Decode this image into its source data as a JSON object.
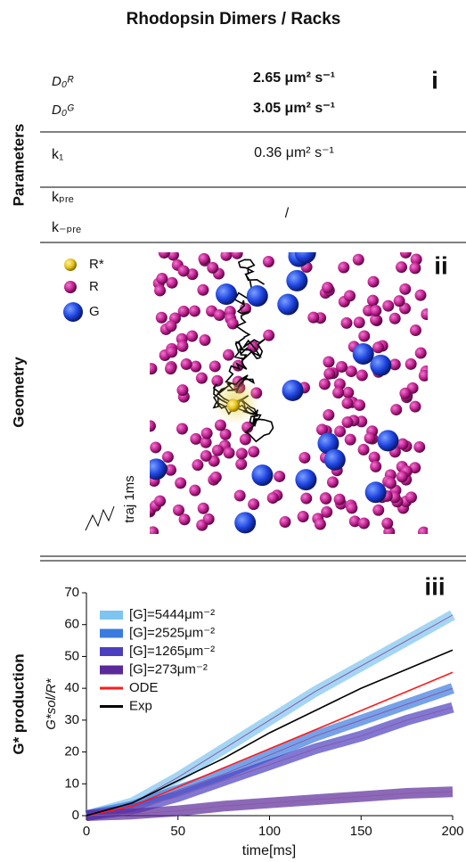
{
  "title": "Rhodopsin Dimers / Racks",
  "parameters": {
    "label": "Parameters",
    "panel": "i",
    "rows": [
      {
        "name": "D₀ᴿ",
        "value": "2.65 μm² s⁻¹"
      },
      {
        "name": "D₀ᴳ",
        "value": "3.05 μm² s⁻¹"
      },
      {
        "name": "k₁",
        "value": "0.36 μm² s⁻¹"
      },
      {
        "name": "kₚᵣₑ"
      },
      {
        "name": "k₋ₚᵣₑ",
        "value": "/"
      }
    ]
  },
  "geometry": {
    "label": "Geometry",
    "panel": "ii",
    "legend": [
      "R*",
      "R",
      "G"
    ],
    "trajectory": "traj 1ms"
  },
  "chart_data": {
    "type": "line",
    "section_label": "G* production",
    "panel": "iii",
    "x_label": "time[ms]",
    "y_label": "G*sol/R*",
    "x": [
      0,
      25,
      50,
      75,
      100,
      125,
      150,
      175,
      200
    ],
    "xlim": [
      0,
      200
    ],
    "xticks": [
      0,
      50,
      100,
      150,
      200
    ],
    "ylim": [
      0,
      70
    ],
    "yticks": [
      0,
      10,
      20,
      30,
      40,
      50,
      60,
      70
    ],
    "series": [
      {
        "name": "[G]=5444μm⁻²",
        "color": "#7ec4f0",
        "band": true,
        "values": [
          0,
          4,
          12,
          21,
          30,
          39,
          47,
          55,
          63
        ]
      },
      {
        "name": "[G]=2525μm⁻²",
        "color": "#3a7be0",
        "band": true,
        "values": [
          0,
          3,
          8,
          13,
          19,
          25,
          30,
          35,
          40
        ]
      },
      {
        "name": "[G]=1265μm⁻²",
        "color": "#4b3fc0",
        "band": true,
        "values": [
          0,
          2,
          6,
          11,
          16,
          21,
          25,
          30,
          34
        ]
      },
      {
        "name": "[G]=273μm⁻²",
        "color": "#5b2a9a",
        "band": true,
        "values": [
          0,
          0.5,
          1.5,
          3,
          4,
          5,
          6,
          7,
          7.5
        ]
      },
      {
        "name": "ODE",
        "color": "#ff1a1a",
        "values": [
          0,
          3,
          9,
          15,
          21,
          27,
          33,
          39,
          45
        ]
      },
      {
        "name": "Exp",
        "color": "#000000",
        "values": [
          0,
          4,
          11,
          18,
          26,
          33,
          40,
          46,
          52
        ]
      }
    ]
  }
}
